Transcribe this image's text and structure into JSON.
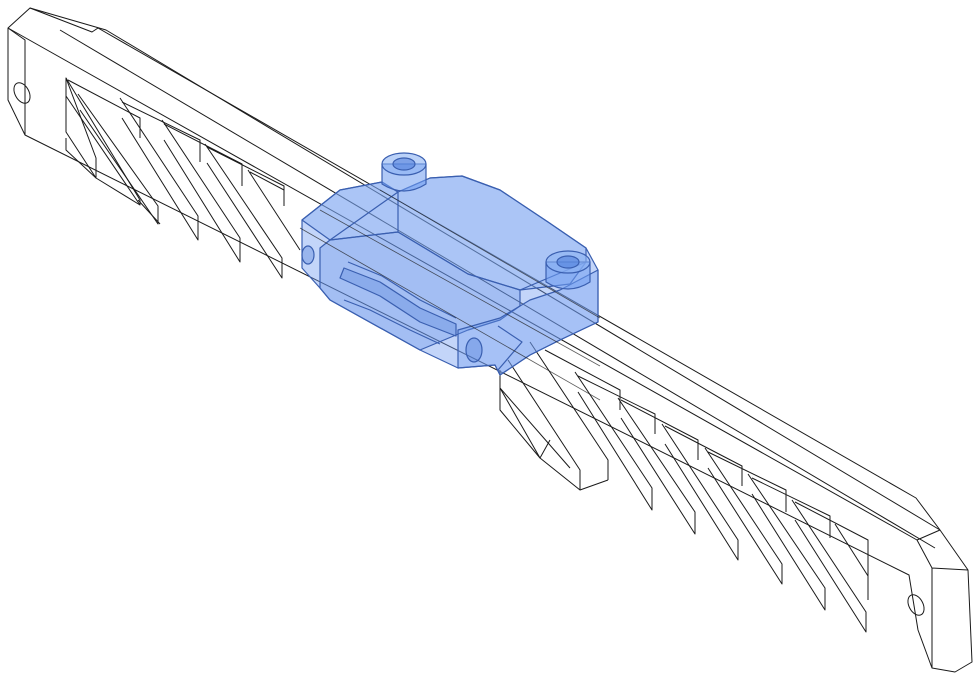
{
  "colors": {
    "background": "#ffffff",
    "line": "#1a1a1a",
    "highlight_fill": "#6f9cf0",
    "highlight_stroke": "#3a5fb0",
    "highlight_opacity": 0.42
  },
  "model": {
    "rail": {
      "mounting_holes": 2,
      "lattice_windows": 12
    },
    "carriage": {
      "selected": true,
      "cap_screws": 2
    }
  }
}
